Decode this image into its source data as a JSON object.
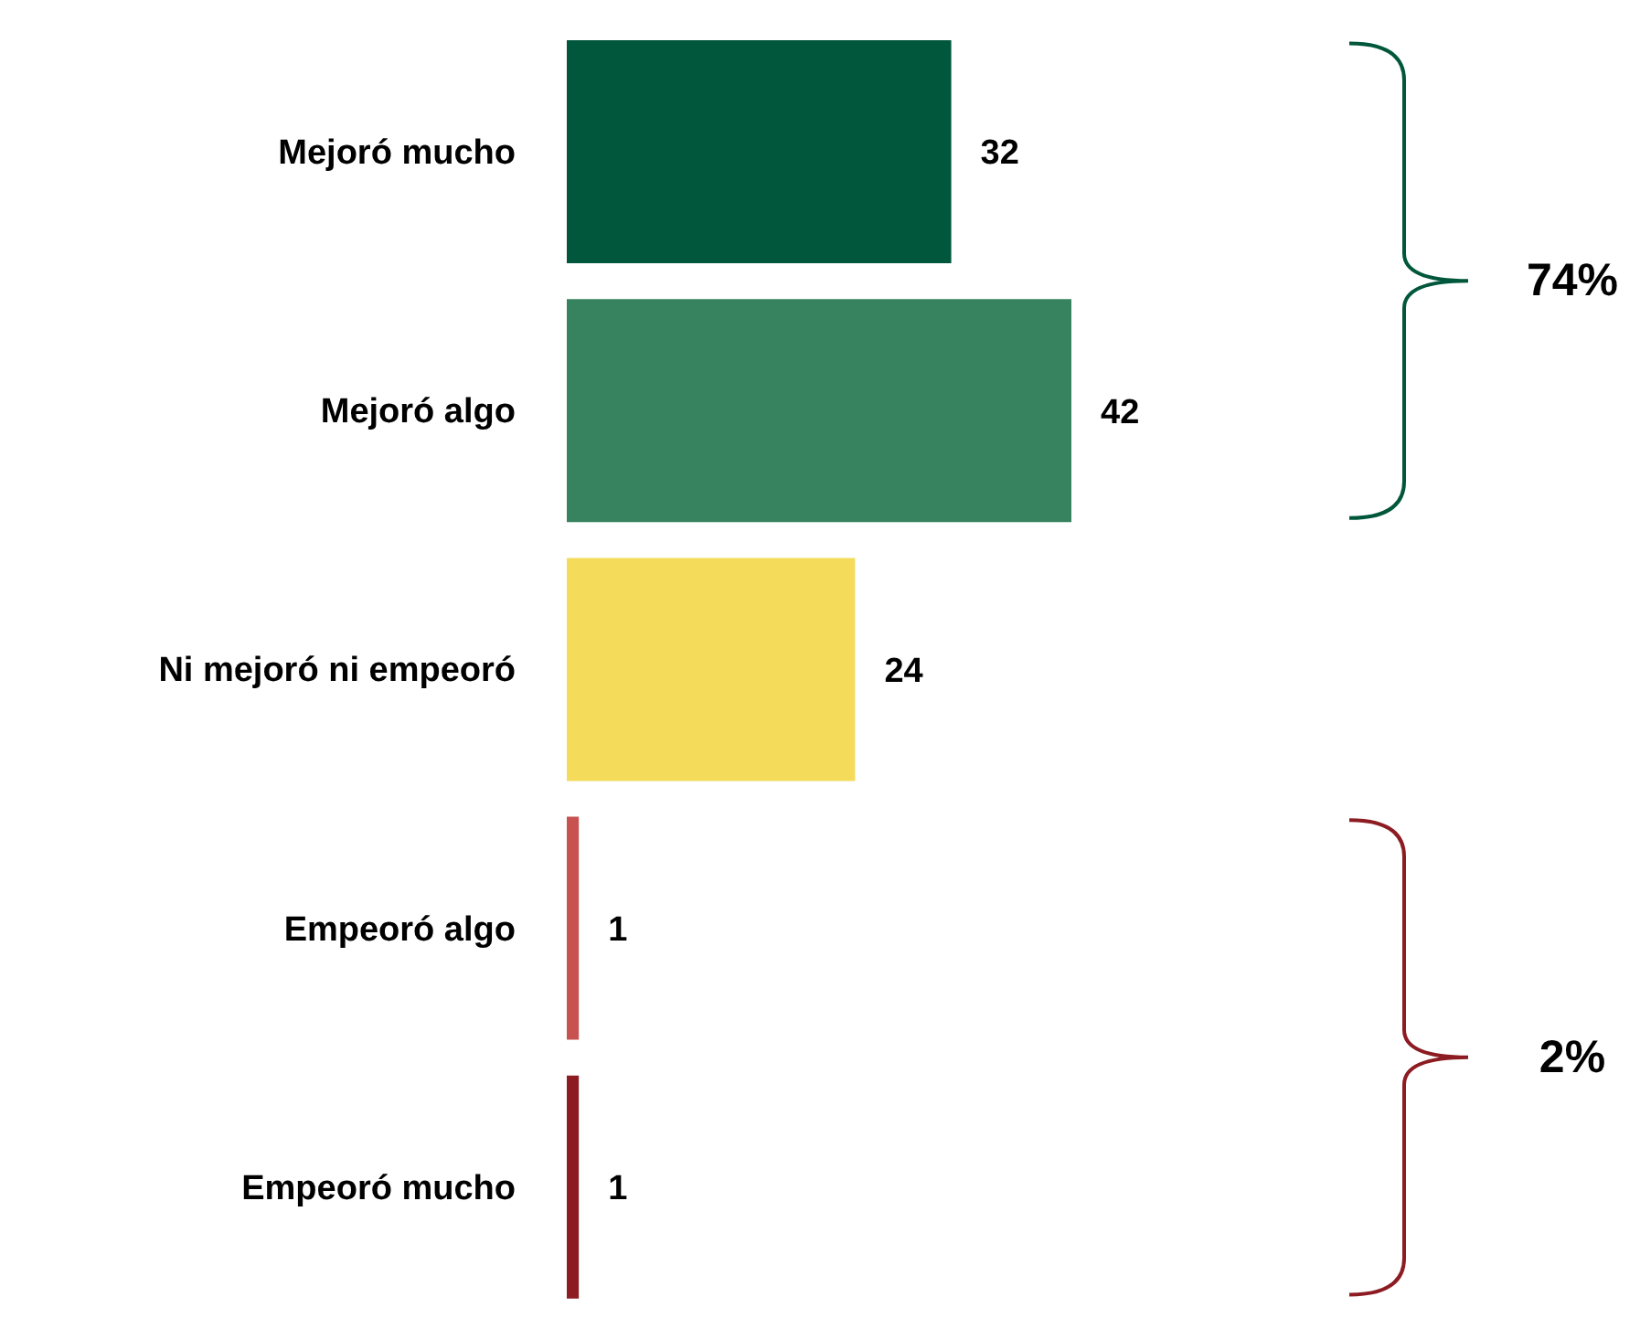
{
  "chart_data": {
    "type": "bar",
    "orientation": "horizontal",
    "categories": [
      "Mejoró mucho",
      "Mejoró algo",
      "Ni mejoró ni empeoró",
      "Empeoró algo",
      "Empeoró mucho"
    ],
    "values": [
      32,
      42,
      24,
      1,
      1
    ],
    "colors": [
      "#00573b",
      "#37835f",
      "#f4dc5a",
      "#c8524f",
      "#8c1c22"
    ],
    "data_labels": true,
    "annotations": [
      "74%",
      "2%"
    ]
  }
}
